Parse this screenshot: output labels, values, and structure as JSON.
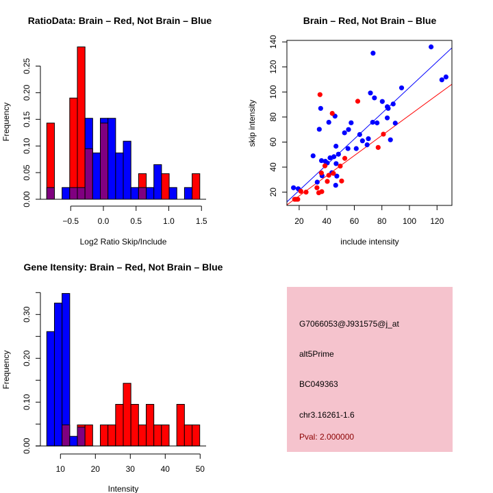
{
  "colors": {
    "brain": "#ff0000",
    "not_brain": "#0000ff",
    "overlap": "#800080",
    "panel": "#f5c3cd",
    "pval": "#8b0000"
  },
  "chart_data": [
    {
      "type": "bar",
      "title": "RatioData: Brain – Red, Not Brain – Blue",
      "xlabel": "Log2 Ratio Skip/Include",
      "ylabel": "Frequency",
      "bin_start": -0.866,
      "bin_width": 0.117,
      "series": [
        {
          "name": "Not Brain",
          "color": "#0000ff",
          "values": [
            0.022,
            0,
            0.022,
            0.022,
            0.022,
            0.152,
            0.087,
            0.152,
            0.152,
            0.087,
            0.109,
            0.022,
            0.022,
            0.022,
            0.065,
            0,
            0.022,
            0,
            0.022,
            0
          ]
        },
        {
          "name": "Brain",
          "color": "#ff0000",
          "values": [
            0.143,
            0,
            0,
            0.19,
            0.286,
            0.095,
            0,
            0.143,
            0,
            0,
            0,
            0,
            0.048,
            0,
            0,
            0.048,
            0,
            0,
            0,
            0.048
          ]
        }
      ],
      "xticks": [
        -0.5,
        0,
        0.5,
        1,
        1.5
      ],
      "xtick_labels": [
        "−0.5",
        "0.0",
        "0.5",
        "1.0",
        "1.5"
      ],
      "yticks": [
        0,
        0.05,
        0.1,
        0.15,
        0.2,
        0.25
      ],
      "ytick_labels": [
        "0.00",
        "0.05",
        "0.10",
        "0.15",
        "0.20",
        "0.25"
      ],
      "ylim": [
        0,
        0.29
      ]
    },
    {
      "type": "scatter",
      "title": "Brain – Red, Not Brain – Blue",
      "xlabel": "include intensity",
      "ylabel": "skip intensity",
      "xlim": [
        11.1,
        130.8
      ],
      "ylim": [
        9.4,
        141.2
      ],
      "xticks": [
        20,
        40,
        60,
        80,
        100,
        120
      ],
      "xtick_labels": [
        "20",
        "40",
        "60",
        "80",
        "100",
        "120"
      ],
      "yticks": [
        20,
        40,
        60,
        80,
        100,
        120,
        140
      ],
      "ytick_labels": [
        "20",
        "40",
        "60",
        "80",
        "100",
        "120",
        "140"
      ],
      "series": [
        {
          "name": "Not Brain",
          "color": "#0000ff",
          "fit": {
            "slope": 1.028,
            "intercept": 0.8
          },
          "points": [
            [
              15.9,
              23.5
            ],
            [
              19.3,
              22.7
            ],
            [
              115.7,
              136
            ],
            [
              73.6,
              131
            ],
            [
              123.5,
              109.7
            ],
            [
              126.5,
              112
            ],
            [
              94.3,
              103.3
            ],
            [
              71.7,
              99.2
            ],
            [
              74.6,
              95.3
            ],
            [
              80.3,
              92.4
            ],
            [
              83.9,
              88.2
            ],
            [
              84.6,
              86.9
            ],
            [
              88.2,
              90.4
            ],
            [
              35.6,
              86.9
            ],
            [
              46,
              80.7
            ],
            [
              41.5,
              75.8
            ],
            [
              57.7,
              75.4
            ],
            [
              73.3,
              75.8
            ],
            [
              76.5,
              75.3
            ],
            [
              83.9,
              79.3
            ],
            [
              89.7,
              75.1
            ],
            [
              34.6,
              70.2
            ],
            [
              55.8,
              70
            ],
            [
              52.9,
              67.4
            ],
            [
              63.9,
              66
            ],
            [
              65.9,
              61
            ],
            [
              70.2,
              62.7
            ],
            [
              86.2,
              61.8
            ],
            [
              69.3,
              57.8
            ],
            [
              46.7,
              56.7
            ],
            [
              55.4,
              54.8
            ],
            [
              61.4,
              54.8
            ],
            [
              30.1,
              49
            ],
            [
              48.5,
              50.3
            ],
            [
              45.2,
              48.3
            ],
            [
              42.4,
              47.4
            ],
            [
              36.2,
              45.2
            ],
            [
              39,
              44.6
            ],
            [
              40.4,
              43.3
            ],
            [
              46.8,
              42.8
            ],
            [
              33.1,
              28
            ],
            [
              36.6,
              33.1
            ],
            [
              43.7,
              35.5
            ],
            [
              47.3,
              32.8
            ],
            [
              46.5,
              25.5
            ]
          ]
        },
        {
          "name": "Brain",
          "color": "#ff0000",
          "fit": {
            "slope": 0.805,
            "intercept": 0.9
          },
          "points": [
            [
              35.1,
              97.9
            ],
            [
              62.5,
              92.6
            ],
            [
              44,
              82.9
            ],
            [
              81.1,
              66.3
            ],
            [
              77.3,
              55.7
            ],
            [
              53.1,
              47
            ],
            [
              38.7,
              41
            ],
            [
              49.8,
              40.8
            ],
            [
              36.1,
              35.3
            ],
            [
              41.5,
              33.5
            ],
            [
              44.8,
              35
            ],
            [
              40.4,
              28.6
            ],
            [
              50.8,
              28.9
            ],
            [
              32.9,
              23.5
            ],
            [
              34.2,
              19.5
            ],
            [
              36.4,
              20.4
            ],
            [
              21.2,
              20.7
            ],
            [
              25,
              20
            ],
            [
              16.7,
              14.3
            ],
            [
              17.7,
              14.3
            ],
            [
              19,
              14.3
            ]
          ]
        }
      ]
    },
    {
      "type": "bar",
      "title": "Gene Itensity: Brain – Red, Not Brain – Blue",
      "xlabel": "Intensity",
      "ylabel": "Frequency",
      "bin_start": 6.08,
      "bin_width": 2.19,
      "series": [
        {
          "name": "Not Brain",
          "color": "#0000ff",
          "values": [
            0.261,
            0.326,
            0.348,
            0.022,
            0.043,
            0,
            0,
            0,
            0,
            0,
            0,
            0,
            0,
            0,
            0,
            0,
            0,
            0,
            0,
            0
          ]
        },
        {
          "name": "Brain",
          "color": "#ff0000",
          "values": [
            0,
            0,
            0.048,
            0,
            0.048,
            0.048,
            0,
            0.048,
            0.048,
            0.095,
            0.143,
            0.095,
            0.048,
            0.095,
            0.048,
            0.048,
            0,
            0.095,
            0.048,
            0.048
          ]
        }
      ],
      "xticks": [
        10,
        20,
        30,
        40,
        50
      ],
      "xtick_labels": [
        "10",
        "20",
        "30",
        "40",
        "50"
      ],
      "yticks": [
        0,
        0.05,
        0.1,
        0.15,
        0.2,
        0.25,
        0.3,
        0.35
      ],
      "ytick_labels": [
        "0.00",
        "",
        "0.10",
        "",
        "0.20",
        "",
        "0.30",
        ""
      ],
      "ylim": [
        0,
        0.35
      ]
    }
  ],
  "info_panel": {
    "probe_id": "G7066053@J931575@j_at",
    "event_type": "alt5Prime",
    "accession": "BC049363",
    "location": "chr3.16261-1.6",
    "pval": "Pval: 2.000000"
  }
}
